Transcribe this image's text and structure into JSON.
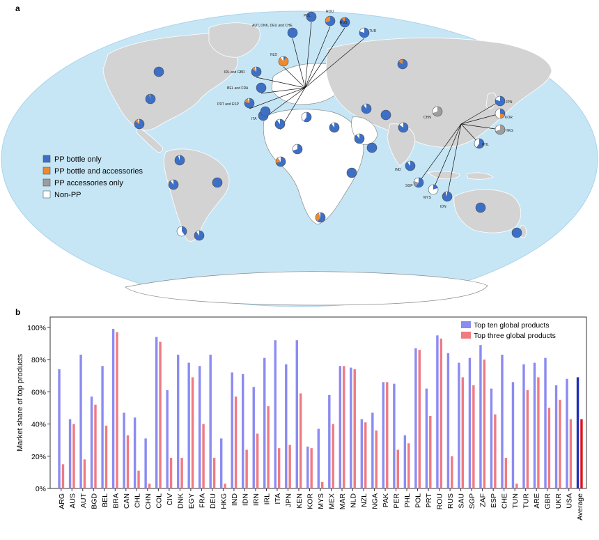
{
  "panel_a": {
    "label": "a",
    "legend": [
      {
        "label": "PP bottle only",
        "color": "#3d6fc6"
      },
      {
        "label": "PP bottle and accessories",
        "color": "#ee8a2e"
      },
      {
        "label": "PP accessories only",
        "color": "#9d9d9d"
      },
      {
        "label": "Non-PP",
        "color": "#ffffff"
      }
    ],
    "callouts": [
      "POL",
      "ROU",
      "RUS",
      "TUR",
      "AUT, DNK, DEU and CHE",
      "NLD",
      "IRL and GBR",
      "BEL and FRA",
      "PRT and ESP",
      "ITA",
      "IND",
      "KOR",
      "JPN",
      "CHN",
      "HKG",
      "MYS",
      "PHL",
      "IDN",
      "SGP"
    ]
  },
  "panel_b": {
    "label": "b",
    "legend": {
      "top_ten": "Top ten global products",
      "top_three": "Top three global products"
    }
  },
  "colors": {
    "top_ten": "#8b8bf2",
    "top_three": "#f07a82",
    "average_top_ten": "#1f2fb8",
    "average_top_three": "#e0121b",
    "ocean": "#c7e6f5",
    "land": "#d3d3d3",
    "pp_bottle": "#3d6fc6",
    "pp_accessories": "#ee8a2e",
    "pp_acc_only": "#9d9d9d"
  },
  "chart_data": {
    "type": "bar",
    "ylabel": "Market share of top products",
    "ylim": [
      0,
      100
    ],
    "yticks": [
      "0%",
      "20%",
      "40%",
      "60%",
      "80%",
      "100%"
    ],
    "categories": [
      "ARG",
      "AUS",
      "AUT",
      "BGD",
      "BEL",
      "BRA",
      "CAN",
      "CHL",
      "CHN",
      "COL",
      "CIV",
      "DNK",
      "EGY",
      "FRA",
      "DEU",
      "HKG",
      "IND",
      "IDN",
      "IRN",
      "IRL",
      "ITA",
      "JPN",
      "KEN",
      "KOR",
      "MYS",
      "MEX",
      "MAR",
      "NLD",
      "NZL",
      "NGA",
      "PAK",
      "PER",
      "PHL",
      "POL",
      "PRT",
      "ROU",
      "RUS",
      "SAU",
      "SGP",
      "ZAF",
      "ESP",
      "CHE",
      "TUN",
      "TUR",
      "ARE",
      "GBR",
      "UKR",
      "USA",
      "Average"
    ],
    "series": [
      {
        "name": "Top ten global products",
        "values": [
          74,
          43,
          83,
          57,
          76,
          99,
          47,
          44,
          31,
          94,
          61,
          83,
          78,
          76,
          83,
          31,
          72,
          71,
          63,
          81,
          92,
          77,
          92,
          26,
          37,
          58,
          76,
          75,
          43,
          47,
          66,
          65,
          33,
          87,
          62,
          95,
          84,
          78,
          81,
          89,
          62,
          83,
          66,
          77,
          78,
          81,
          64,
          68,
          69
        ]
      },
      {
        "name": "Top three global products",
        "values": [
          15,
          40,
          18,
          52,
          39,
          97,
          33,
          11,
          3,
          91,
          19,
          19,
          69,
          40,
          19,
          3,
          57,
          24,
          34,
          51,
          25,
          27,
          59,
          25,
          4,
          40,
          76,
          74,
          41,
          36,
          66,
          24,
          28,
          86,
          45,
          93,
          20,
          69,
          64,
          80,
          46,
          19,
          3,
          61,
          69,
          50,
          55,
          43,
          43
        ]
      }
    ]
  },
  "map_points": [
    {
      "name": "CAN",
      "p": [
        1,
        0,
        0,
        0
      ]
    },
    {
      "name": "USA",
      "p": [
        0.95,
        0,
        0.05,
        0
      ]
    },
    {
      "name": "MEX",
      "p": [
        0.85,
        0.1,
        0,
        0.05
      ]
    },
    {
      "name": "COL",
      "p": [
        0.95,
        0,
        0,
        0.05
      ]
    },
    {
      "name": "PER",
      "p": [
        0.9,
        0,
        0,
        0.1
      ]
    },
    {
      "name": "BRA",
      "p": [
        1,
        0,
        0,
        0
      ]
    },
    {
      "name": "CHL",
      "p": [
        0.4,
        0,
        0,
        0.6
      ]
    },
    {
      "name": "ARG",
      "p": [
        0.9,
        0,
        0,
        0.1
      ]
    },
    {
      "name": "MAR",
      "p": [
        1,
        0,
        0,
        0
      ]
    },
    {
      "name": "TUN",
      "p": [
        0.6,
        0,
        0,
        0.4
      ]
    },
    {
      "name": "EGY",
      "p": [
        0.9,
        0,
        0,
        0.1
      ]
    },
    {
      "name": "CIV",
      "p": [
        0.7,
        0.2,
        0,
        0.1
      ]
    },
    {
      "name": "NGA",
      "p": [
        0.7,
        0,
        0,
        0.3
      ]
    },
    {
      "name": "KEN",
      "p": [
        1,
        0,
        0,
        0
      ]
    },
    {
      "name": "ZAF",
      "p": [
        0.6,
        0.35,
        0,
        0.05
      ]
    },
    {
      "name": "RUS",
      "p": [
        0.85,
        0.15,
        0,
        0
      ]
    },
    {
      "name": "IRN",
      "p": [
        0.9,
        0,
        0,
        0.1
      ]
    },
    {
      "name": "SAU",
      "p": [
        0.9,
        0,
        0,
        0.1
      ]
    },
    {
      "name": "PAK",
      "p": [
        1,
        0,
        0,
        0
      ]
    },
    {
      "name": "IND",
      "p": [
        0.85,
        0,
        0,
        0.15
      ]
    },
    {
      "name": "BGD",
      "p": [
        0.9,
        0,
        0,
        0.1
      ]
    },
    {
      "name": "CHN",
      "p": [
        0,
        0,
        0.7,
        0.3
      ]
    },
    {
      "name": "AUS",
      "p": [
        1,
        0,
        0,
        0
      ]
    },
    {
      "name": "NZL",
      "p": [
        1,
        0,
        0,
        0
      ]
    },
    {
      "name": "POL",
      "p": [
        1,
        0,
        0,
        0
      ]
    },
    {
      "name": "ROU",
      "p": [
        0.7,
        0.3,
        0,
        0
      ]
    },
    {
      "name": "RUS-EU",
      "p": [
        0.9,
        0.1,
        0,
        0
      ]
    },
    {
      "name": "TUR",
      "p": [
        0.8,
        0,
        0,
        0.2
      ]
    },
    {
      "name": "AUT, DNK, DEU and CHE",
      "p": [
        1,
        0,
        0,
        0
      ]
    },
    {
      "name": "NLD",
      "p": [
        0.1,
        0.8,
        0,
        0.1
      ]
    },
    {
      "name": "IRL and GBR",
      "p": [
        0.85,
        0.1,
        0,
        0.05
      ]
    },
    {
      "name": "BEL and FRA",
      "p": [
        1,
        0,
        0,
        0
      ]
    },
    {
      "name": "PRT and ESP",
      "p": [
        0.8,
        0.15,
        0,
        0.05
      ]
    },
    {
      "name": "ITA",
      "p": [
        1,
        0,
        0,
        0
      ]
    },
    {
      "name": "KOR",
      "p": [
        0.3,
        0.2,
        0,
        0.5
      ]
    },
    {
      "name": "JPN",
      "p": [
        0.8,
        0,
        0,
        0.2
      ]
    },
    {
      "name": "HKG",
      "p": [
        0,
        0,
        0.7,
        0.3
      ]
    },
    {
      "name": "MYS",
      "p": [
        0.2,
        0,
        0,
        0.8
      ]
    },
    {
      "name": "PHL",
      "p": [
        0.6,
        0,
        0,
        0.4
      ]
    },
    {
      "name": "IDN",
      "p": [
        0.95,
        0,
        0,
        0.05
      ]
    },
    {
      "name": "SGP",
      "p": [
        0.6,
        0,
        0.2,
        0.2
      ]
    },
    {
      "name": "ARE",
      "p": [
        1,
        0,
        0,
        0
      ]
    },
    {
      "name": "UKR",
      "p": [
        0.9,
        0,
        0,
        0.1
      ]
    }
  ]
}
